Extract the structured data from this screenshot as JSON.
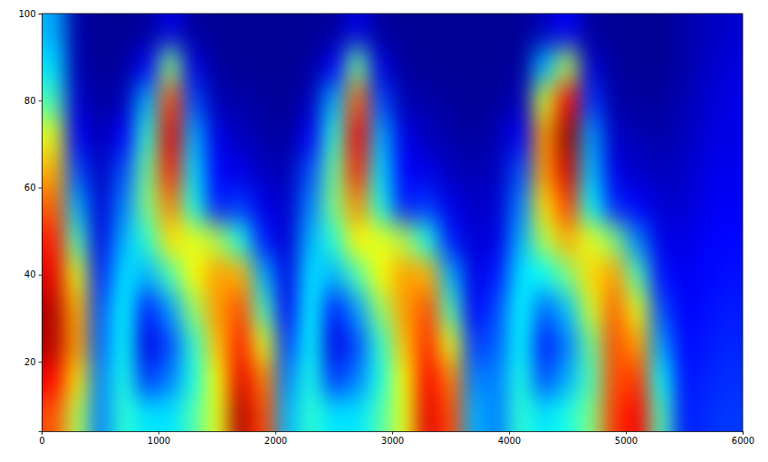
{
  "chart_data": {
    "type": "heatmap",
    "x": [
      100,
      300,
      500,
      700,
      900,
      1100,
      1300,
      1500,
      1700,
      1900,
      2100,
      2300,
      2500,
      2700,
      2900,
      3100,
      3300,
      3500,
      3700,
      3900,
      4100,
      4300,
      4500,
      4700,
      4900,
      5100,
      5300,
      5500,
      5700,
      5900
    ],
    "y": [
      8,
      16,
      24,
      32,
      40,
      48,
      56,
      64,
      72,
      80,
      88,
      96
    ],
    "values": [
      [
        0.8,
        0.55,
        0.25,
        0.42,
        0.35,
        0.35,
        0.45,
        0.6,
        0.95,
        0.8,
        0.3,
        0.42,
        0.35,
        0.35,
        0.45,
        0.6,
        0.9,
        0.8,
        0.3,
        0.25,
        0.42,
        0.35,
        0.4,
        0.5,
        0.82,
        0.88,
        0.45,
        0.15,
        0.17,
        0.18
      ],
      [
        0.88,
        0.65,
        0.25,
        0.4,
        0.18,
        0.25,
        0.4,
        0.62,
        0.9,
        0.75,
        0.25,
        0.4,
        0.18,
        0.25,
        0.4,
        0.62,
        0.88,
        0.75,
        0.25,
        0.25,
        0.4,
        0.2,
        0.3,
        0.45,
        0.8,
        0.82,
        0.38,
        0.14,
        0.16,
        0.17
      ],
      [
        0.95,
        0.72,
        0.22,
        0.38,
        0.1,
        0.2,
        0.42,
        0.68,
        0.85,
        0.6,
        0.18,
        0.38,
        0.1,
        0.2,
        0.42,
        0.68,
        0.84,
        0.6,
        0.18,
        0.22,
        0.38,
        0.15,
        0.25,
        0.48,
        0.8,
        0.72,
        0.28,
        0.13,
        0.15,
        0.16
      ],
      [
        0.95,
        0.7,
        0.2,
        0.38,
        0.15,
        0.28,
        0.52,
        0.72,
        0.8,
        0.45,
        0.12,
        0.38,
        0.15,
        0.28,
        0.52,
        0.72,
        0.8,
        0.45,
        0.12,
        0.2,
        0.38,
        0.22,
        0.32,
        0.58,
        0.78,
        0.6,
        0.2,
        0.12,
        0.14,
        0.15
      ],
      [
        0.9,
        0.6,
        0.15,
        0.35,
        0.3,
        0.45,
        0.62,
        0.72,
        0.7,
        0.3,
        0.1,
        0.35,
        0.3,
        0.45,
        0.62,
        0.72,
        0.7,
        0.3,
        0.1,
        0.15,
        0.35,
        0.38,
        0.5,
        0.66,
        0.72,
        0.45,
        0.14,
        0.11,
        0.13,
        0.14
      ],
      [
        0.85,
        0.45,
        0.1,
        0.3,
        0.42,
        0.65,
        0.6,
        0.55,
        0.4,
        0.15,
        0.08,
        0.3,
        0.42,
        0.63,
        0.6,
        0.55,
        0.4,
        0.15,
        0.08,
        0.1,
        0.3,
        0.55,
        0.7,
        0.6,
        0.5,
        0.25,
        0.1,
        0.1,
        0.12,
        0.13
      ],
      [
        0.78,
        0.3,
        0.08,
        0.25,
        0.5,
        0.75,
        0.4,
        0.15,
        0.18,
        0.1,
        0.07,
        0.25,
        0.5,
        0.74,
        0.4,
        0.15,
        0.18,
        0.1,
        0.07,
        0.08,
        0.25,
        0.65,
        0.82,
        0.38,
        0.16,
        0.12,
        0.08,
        0.08,
        0.11,
        0.12
      ],
      [
        0.7,
        0.2,
        0.06,
        0.2,
        0.48,
        0.85,
        0.35,
        0.12,
        0.1,
        0.06,
        0.05,
        0.2,
        0.48,
        0.84,
        0.35,
        0.12,
        0.1,
        0.06,
        0.05,
        0.06,
        0.2,
        0.72,
        0.92,
        0.32,
        0.1,
        0.07,
        0.06,
        0.07,
        0.1,
        0.11
      ],
      [
        0.6,
        0.12,
        0.05,
        0.12,
        0.42,
        0.9,
        0.3,
        0.1,
        0.06,
        0.04,
        0.03,
        0.12,
        0.42,
        0.88,
        0.3,
        0.1,
        0.06,
        0.04,
        0.03,
        0.05,
        0.12,
        0.72,
        0.98,
        0.28,
        0.07,
        0.05,
        0.04,
        0.06,
        0.09,
        0.1
      ],
      [
        0.45,
        0.08,
        0.03,
        0.06,
        0.3,
        0.8,
        0.2,
        0.05,
        0.04,
        0.03,
        0.02,
        0.06,
        0.3,
        0.78,
        0.2,
        0.05,
        0.04,
        0.03,
        0.02,
        0.03,
        0.06,
        0.58,
        0.88,
        0.18,
        0.04,
        0.03,
        0.03,
        0.05,
        0.08,
        0.1
      ],
      [
        0.35,
        0.05,
        0.02,
        0.03,
        0.12,
        0.5,
        0.1,
        0.03,
        0.02,
        0.02,
        0.02,
        0.03,
        0.12,
        0.48,
        0.1,
        0.03,
        0.02,
        0.02,
        0.02,
        0.02,
        0.03,
        0.3,
        0.55,
        0.08,
        0.03,
        0.02,
        0.02,
        0.04,
        0.07,
        0.09
      ],
      [
        0.3,
        0.04,
        0.02,
        0.02,
        0.03,
        0.1,
        0.03,
        0.02,
        0.02,
        0.02,
        0.02,
        0.02,
        0.03,
        0.1,
        0.03,
        0.02,
        0.02,
        0.02,
        0.02,
        0.02,
        0.02,
        0.06,
        0.12,
        0.03,
        0.02,
        0.02,
        0.02,
        0.04,
        0.06,
        0.08
      ]
    ],
    "zlim": [
      0,
      1
    ],
    "xlim": [
      0,
      6000
    ],
    "xticks": [
      0,
      1000,
      2000,
      3000,
      4000,
      5000,
      6000
    ],
    "ylim": [
      4,
      100
    ],
    "yticks": [
      20,
      40,
      60,
      80,
      100
    ]
  }
}
